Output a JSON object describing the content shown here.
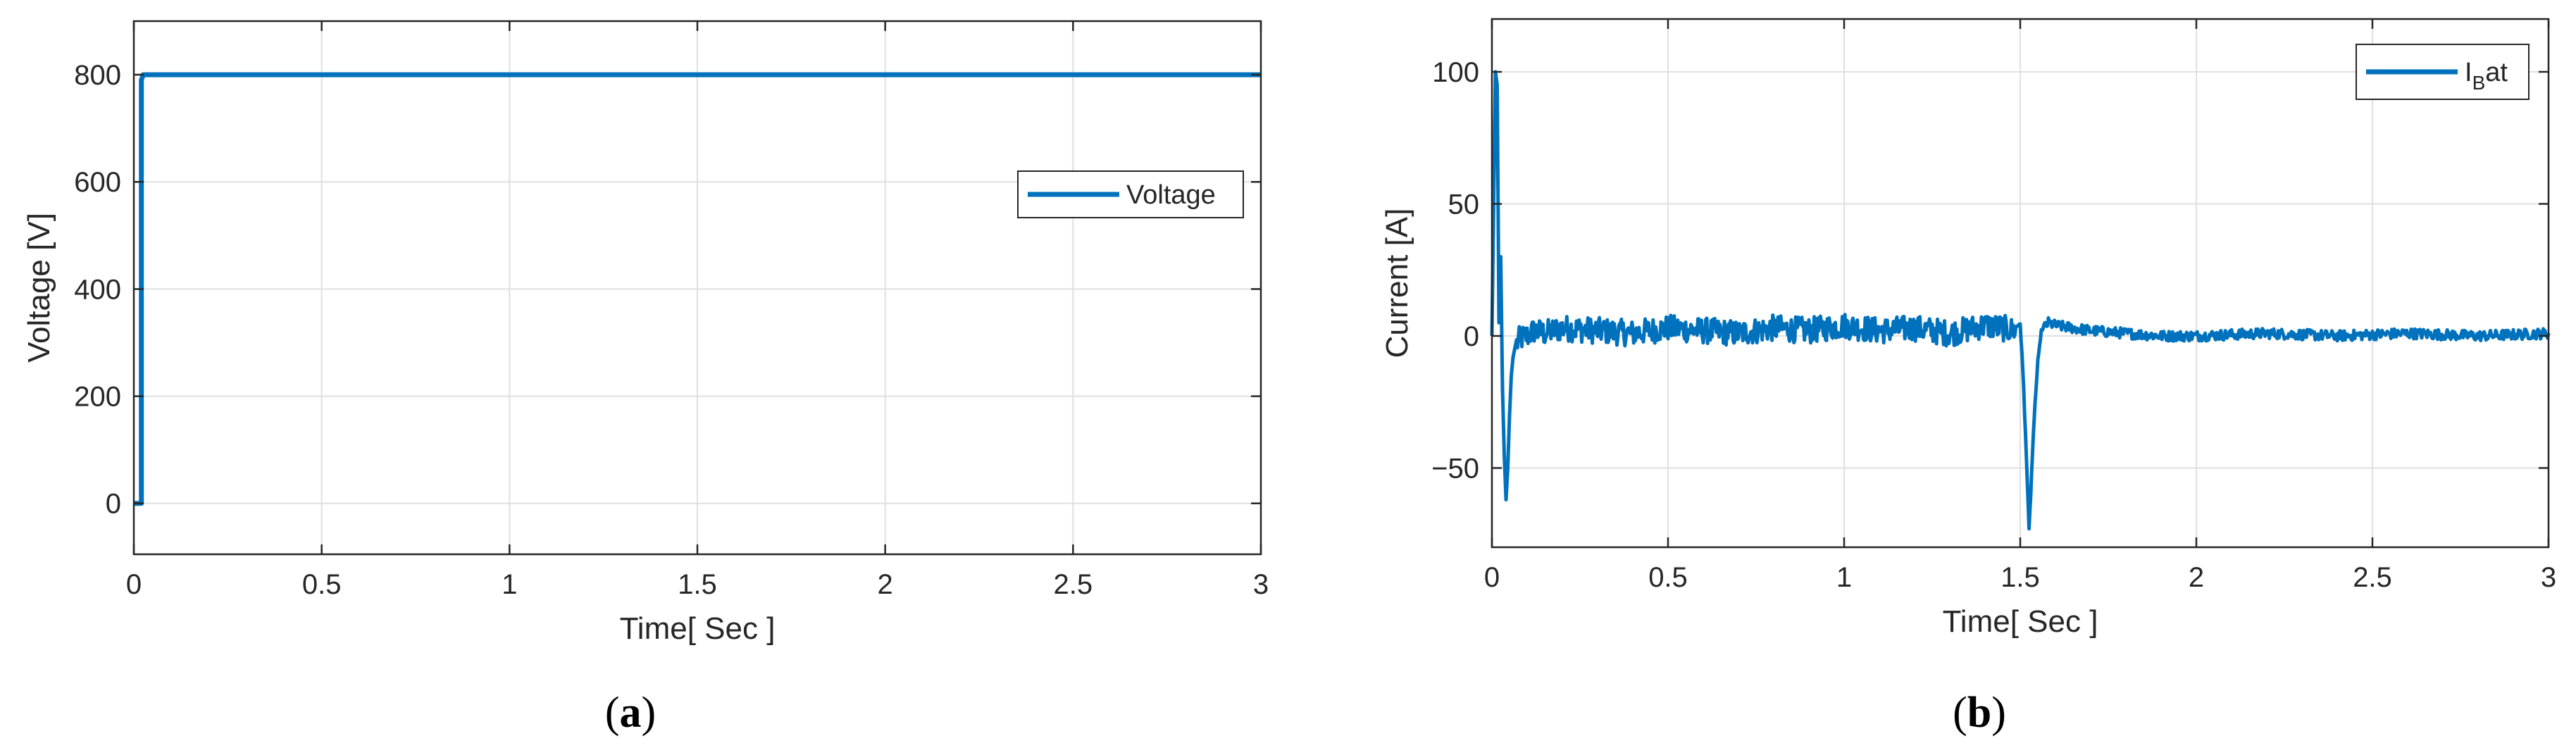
{
  "chart_data": [
    {
      "type": "line",
      "caption_prefix": "(",
      "caption_letter": "a",
      "caption_suffix": ")",
      "xlabel": "Time[ Sec ]",
      "ylabel": "Voltage [V]",
      "xlim": [
        0,
        3
      ],
      "ylim": [
        -95,
        900
      ],
      "xticks": [
        0,
        0.5,
        1,
        1.5,
        2,
        2.5,
        3
      ],
      "xtick_labels": [
        "0",
        "0.5",
        "1",
        "1.5",
        "2",
        "2.5",
        "3"
      ],
      "yticks": [
        0,
        200,
        400,
        600,
        800
      ],
      "ytick_labels": [
        "0",
        "200",
        "400",
        "600",
        "800"
      ],
      "grid": true,
      "legend_position": "right",
      "series": [
        {
          "name": "Voltage",
          "color": "#0072bd",
          "x": [
            0,
            0.02,
            0.02,
            0.025,
            0.025,
            3
          ],
          "y": [
            0,
            0,
            790,
            800,
            800,
            800
          ]
        }
      ]
    },
    {
      "type": "line",
      "caption_prefix": "(",
      "caption_letter": "b",
      "caption_suffix": ")",
      "xlabel": "Time[ Sec ]",
      "ylabel": "Current [A]",
      "xlim": [
        0,
        3
      ],
      "ylim": [
        -80,
        120
      ],
      "xticks": [
        0,
        0.5,
        1,
        1.5,
        2,
        2.5,
        3
      ],
      "xtick_labels": [
        "0",
        "0.5",
        "1",
        "1.5",
        "2",
        "2.5",
        "3"
      ],
      "yticks": [
        -50,
        0,
        50,
        100
      ],
      "ytick_labels": [
        "−50",
        "0",
        "50",
        "100"
      ],
      "grid": true,
      "legend_position": "top-right",
      "legend_main": "I",
      "legend_sub": "B",
      "legend_tail": "at",
      "series": [
        {
          "name": "IBat",
          "color": "#0072bd",
          "x": [
            0,
            0.01,
            0.015,
            0.02,
            0.025,
            0.03,
            0.035,
            0.04,
            0.045,
            0.05,
            0.055,
            0.06,
            0.07,
            0.08,
            0.1,
            0.12,
            0.15,
            0.2,
            0.3,
            0.4,
            0.5,
            0.6,
            0.7,
            0.8,
            0.9,
            1.0,
            1.1,
            1.2,
            1.3,
            1.4,
            1.45,
            1.48,
            1.5,
            1.51,
            1.52,
            1.525,
            1.53,
            1.54,
            1.55,
            1.56,
            1.58,
            1.6,
            1.65,
            1.7,
            1.8,
            1.9,
            2.0,
            2.2,
            2.4,
            2.6,
            2.8,
            3.0
          ],
          "y": [
            0,
            100,
            95,
            5,
            30,
            -20,
            -45,
            -62,
            -50,
            -30,
            -15,
            -8,
            -3,
            -1,
            0,
            2,
            1,
            3,
            2,
            1,
            3,
            2,
            1,
            3,
            2,
            4,
            2,
            3,
            1,
            4,
            3,
            2,
            5,
            -20,
            -55,
            -72,
            -60,
            -30,
            -10,
            2,
            5,
            4,
            3,
            2,
            1,
            0,
            0,
            1,
            0,
            1,
            0,
            1
          ],
          "noise": [
            {
              "from": 0.07,
              "to": 1.55,
              "amplitude": 5
            },
            {
              "from": 1.55,
              "to": 3.0,
              "amplitude": 2
            }
          ]
        }
      ]
    }
  ]
}
